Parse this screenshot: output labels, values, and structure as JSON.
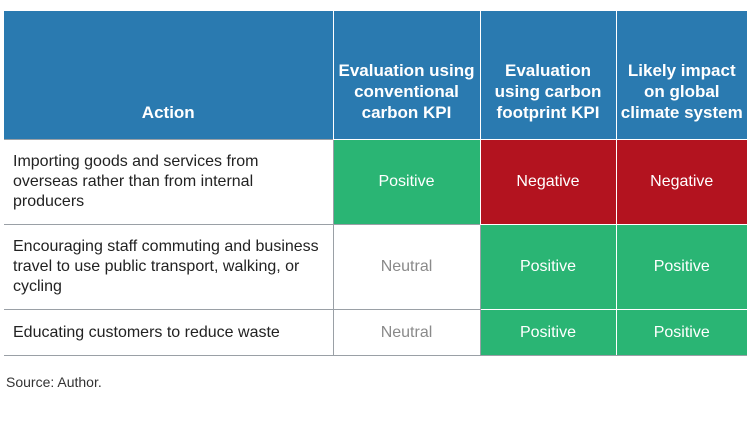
{
  "table": {
    "headers": [
      "Action",
      "Evaluation using conventional carbon KPI",
      "Evaluation using carbon footprint KPI",
      "Likely impact on global climate system"
    ],
    "rows": [
      {
        "action": "Importing goods and services from overseas rather than from internal producers",
        "conventional": "Positive",
        "footprint": "Negative",
        "impact": "Negative"
      },
      {
        "action": "Encouraging staff commuting and business travel to use public transport, walking, or cycling",
        "conventional": "Neutral",
        "footprint": "Positive",
        "impact": "Positive"
      },
      {
        "action": "Educating customers to reduce waste",
        "conventional": "Neutral",
        "footprint": "Positive",
        "impact": "Positive"
      }
    ]
  },
  "colors": {
    "header": "#2a7ab0",
    "positive": "#2ab574",
    "negative": "#b3131f",
    "neutral_text": "#8a8a8a"
  },
  "source": "Source: Author."
}
